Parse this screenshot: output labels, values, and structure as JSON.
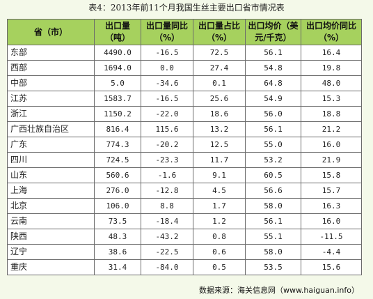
{
  "title": "表4：2013年前11个月我国生丝主要出口省市情况表",
  "headers": [
    [
      "省（市）"
    ],
    [
      "出口量",
      "（吨）"
    ],
    [
      "出口量同比",
      "（%）"
    ],
    [
      "出口量占比",
      "（%）"
    ],
    [
      "出口均价（美",
      "元/千克）"
    ],
    [
      "出口均价同比",
      "（%）"
    ]
  ],
  "rows": [
    [
      "东部",
      "4490.0",
      "-16.5",
      "72.5",
      "56.1",
      "16.4"
    ],
    [
      "西部",
      "1694.0",
      "0.0",
      "27.4",
      "54.8",
      "19.8"
    ],
    [
      "中部",
      "5.0",
      "-34.6",
      "0.1",
      "64.8",
      "48.0"
    ],
    [
      "江苏",
      "1583.7",
      "-16.5",
      "25.6",
      "54.9",
      "15.3"
    ],
    [
      "浙江",
      "1150.2",
      "-22.0",
      "18.6",
      "56.0",
      "18.8"
    ],
    [
      "广西壮族自治区",
      "816.4",
      "115.6",
      "13.2",
      "56.1",
      "21.2"
    ],
    [
      "广东",
      "774.3",
      "-20.2",
      "12.5",
      "55.0",
      "16.0"
    ],
    [
      "四川",
      "724.5",
      "-23.3",
      "11.7",
      "53.2",
      "21.9"
    ],
    [
      "山东",
      "560.6",
      "-1.6",
      "9.1",
      "60.5",
      "15.8"
    ],
    [
      "上海",
      "276.0",
      "-12.8",
      "4.5",
      "56.6",
      "15.7"
    ],
    [
      "北京",
      "106.0",
      "8.8",
      "1.7",
      "58.0",
      "16.3"
    ],
    [
      "云南",
      "73.5",
      "-18.4",
      "1.2",
      "56.1",
      "16.0"
    ],
    [
      "陕西",
      "48.3",
      "-43.2",
      "0.8",
      "55.1",
      "-11.5"
    ],
    [
      "辽宁",
      "38.6",
      "-22.5",
      "0.6",
      "58.0",
      "-4.4"
    ],
    [
      "重庆",
      "31.4",
      "-84.0",
      "0.5",
      "53.5",
      "15.6"
    ]
  ],
  "source": "数据来源：海关信息网（www.haiguan.info）",
  "colors": {
    "header_bg": "#a6d15e",
    "page_bg": "#f4f9e9",
    "cell_bg": "#ffffff",
    "border": "#6b6b6b"
  }
}
